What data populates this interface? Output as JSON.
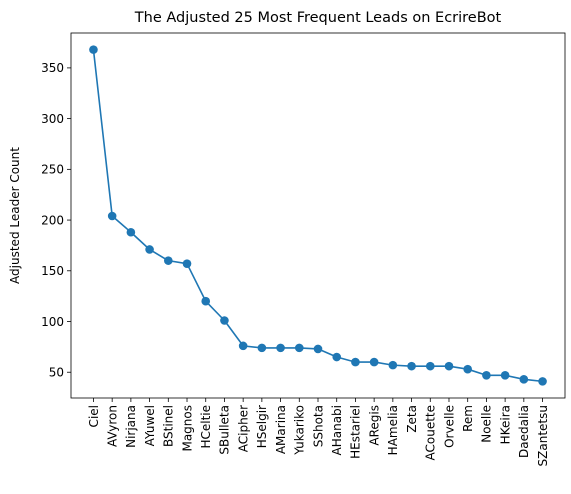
{
  "chart_data": {
    "type": "line",
    "title": "The Adjusted 25 Most Frequent Leads on EcrireBot",
    "xlabel": "",
    "ylabel": "Adjusted Leader Count",
    "ylim": [
      24.6,
      384.4
    ],
    "yticks": [
      50,
      100,
      150,
      200,
      250,
      300,
      350
    ],
    "grid": false,
    "categories": [
      "Ciel",
      "AVyron",
      "Nirjana",
      "AYuwel",
      "BStinel",
      "Magnos",
      "HCeltie",
      "SBulleta",
      "ACipher",
      "HSelgir",
      "AMarina",
      "Yukariko",
      "SShota",
      "AHanabi",
      "HEstariel",
      "ARegis",
      "HAmelia",
      "Zeta",
      "ACouette",
      "Orvelle",
      "Rem",
      "Noelle",
      "HKeira",
      "Daedalia",
      "SZantetsu"
    ],
    "series": [
      {
        "color": "#1f77b4",
        "values": [
          368,
          204,
          188,
          171,
          160,
          157,
          120,
          101,
          76,
          74,
          74,
          74,
          73,
          65,
          60,
          60,
          57,
          56,
          56,
          56,
          53,
          47,
          47,
          43,
          41
        ]
      }
    ]
  }
}
